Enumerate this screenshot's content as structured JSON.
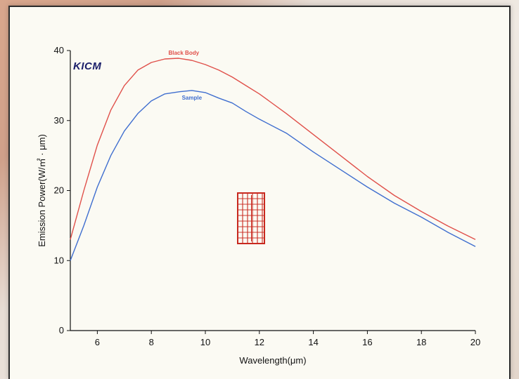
{
  "chart_data": {
    "type": "line",
    "title": "",
    "brand": "KICM",
    "xlabel": "Wavelength(μm)",
    "ylabel": "Emission Power(W/㎡ · μm)",
    "xlim": [
      5,
      20
    ],
    "ylim": [
      0,
      40
    ],
    "xticks": [
      6,
      8,
      10,
      12,
      14,
      16,
      18,
      20
    ],
    "yticks": [
      0,
      10,
      20,
      30,
      40
    ],
    "grid": false,
    "series": [
      {
        "name": "Black Body",
        "color": "#e0504a",
        "x": [
          5,
          5.5,
          6,
          6.5,
          7,
          7.5,
          8,
          8.5,
          9,
          9.5,
          10,
          10.5,
          11,
          11.5,
          12,
          13,
          14,
          15,
          16,
          17,
          18,
          19,
          20
        ],
        "y": [
          13,
          20,
          26.5,
          31.5,
          35,
          37.2,
          38.3,
          38.8,
          38.9,
          38.6,
          38,
          37.2,
          36.2,
          35,
          33.8,
          31,
          28,
          25,
          22,
          19.3,
          17,
          14.9,
          13
        ]
      },
      {
        "name": "Sample",
        "color": "#3f6ecf",
        "x": [
          5,
          5.5,
          6,
          6.5,
          7,
          7.5,
          8,
          8.5,
          9,
          9.5,
          10,
          10.5,
          11,
          11.5,
          12,
          13,
          14,
          15,
          16,
          17,
          18,
          19,
          20
        ],
        "y": [
          10,
          15,
          20.5,
          25,
          28.5,
          31,
          32.8,
          33.8,
          34.1,
          34.3,
          34,
          33.2,
          32.5,
          31.3,
          30.2,
          28.2,
          25.5,
          23,
          20.5,
          18.2,
          16.2,
          14,
          12
        ]
      }
    ]
  },
  "chart_strings": {
    "black_body_label": "Black Body",
    "sample_label": "Sample"
  }
}
